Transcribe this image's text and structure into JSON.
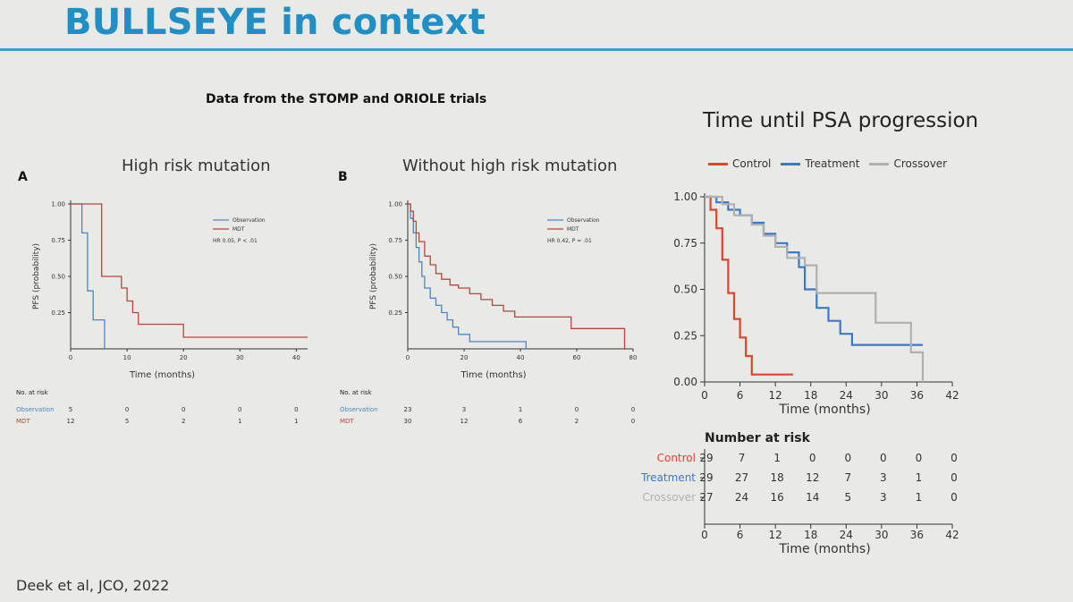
{
  "slide": {
    "title": "BULLSEYE in context",
    "subtitle": "Data from the STOMP and ORIOLE trials",
    "citation": "Deek et al, JCO, 2022"
  },
  "colors": {
    "observation": "#4a86c6",
    "mdt": "#b64540",
    "control": "#d9452f",
    "treatment": "#3a78c9",
    "crossover": "#b0b0b0",
    "accent": "#1f8fc6"
  },
  "chart_data": [
    {
      "type": "line",
      "panel_letter": "A",
      "title": "High risk mutation",
      "xlabel": "Time (months)",
      "ylabel": "PFS (probability)",
      "xlim": [
        0,
        42
      ],
      "ylim": [
        0,
        1
      ],
      "xticks": [
        "0",
        "10",
        "20",
        "30",
        "40"
      ],
      "yticks": [
        "0.25",
        "0.50",
        "0.75",
        "1.00"
      ],
      "legend": {
        "placement": "top-right",
        "entries": [
          "Observation",
          "MDT"
        ],
        "stat": "HR 0.05, P < .01"
      },
      "series": [
        {
          "name": "Observation",
          "color": "observation",
          "points": [
            [
              0,
              1
            ],
            [
              2,
              1
            ],
            [
              2,
              0.8
            ],
            [
              3,
              0.8
            ],
            [
              3,
              0.4
            ],
            [
              4,
              0.4
            ],
            [
              4,
              0.2
            ],
            [
              6,
              0.2
            ],
            [
              6,
              0
            ]
          ]
        },
        {
          "name": "MDT",
          "color": "mdt",
          "points": [
            [
              0,
              1
            ],
            [
              5.5,
              1
            ],
            [
              5.5,
              0.5
            ],
            [
              9,
              0.5
            ],
            [
              9,
              0.42
            ],
            [
              10,
              0.42
            ],
            [
              10,
              0.33
            ],
            [
              11,
              0.33
            ],
            [
              11,
              0.25
            ],
            [
              12,
              0.25
            ],
            [
              12,
              0.17
            ],
            [
              20,
              0.17
            ],
            [
              20,
              0.08
            ],
            [
              42,
              0.08
            ]
          ]
        }
      ],
      "risk_table": {
        "header": "No. at risk",
        "rows": [
          {
            "label": "Observation",
            "color": "observation",
            "values": [
              "5",
              "0",
              "0",
              "0",
              "0"
            ]
          },
          {
            "label": "MDT",
            "color": "mdt",
            "values": [
              "12",
              "5",
              "2",
              "1",
              "1"
            ]
          }
        ]
      }
    },
    {
      "type": "line",
      "panel_letter": "B",
      "title": "Without high risk mutation",
      "xlabel": "Time (months)",
      "ylabel": "PFS (probability)",
      "xlim": [
        0,
        80
      ],
      "ylim": [
        0,
        1
      ],
      "xticks": [
        "0",
        "20",
        "40",
        "60",
        "80"
      ],
      "yticks": [
        "0.25",
        "0.50",
        "0.75",
        "1.00"
      ],
      "legend": {
        "placement": "top-right",
        "entries": [
          "Observation",
          "MDT"
        ],
        "stat": "HR 0.42, P = .01"
      },
      "series": [
        {
          "name": "Observation",
          "color": "observation",
          "points": [
            [
              0,
              1
            ],
            [
              1,
              1
            ],
            [
              1,
              0.9
            ],
            [
              2,
              0.9
            ],
            [
              2,
              0.8
            ],
            [
              3,
              0.8
            ],
            [
              3,
              0.7
            ],
            [
              4,
              0.7
            ],
            [
              4,
              0.6
            ],
            [
              5,
              0.6
            ],
            [
              5,
              0.5
            ],
            [
              6,
              0.5
            ],
            [
              6,
              0.42
            ],
            [
              8,
              0.42
            ],
            [
              8,
              0.35
            ],
            [
              10,
              0.35
            ],
            [
              10,
              0.3
            ],
            [
              12,
              0.3
            ],
            [
              12,
              0.25
            ],
            [
              14,
              0.25
            ],
            [
              14,
              0.2
            ],
            [
              16,
              0.2
            ],
            [
              16,
              0.15
            ],
            [
              18,
              0.15
            ],
            [
              18,
              0.1
            ],
            [
              22,
              0.1
            ],
            [
              22,
              0.05
            ],
            [
              42,
              0.05
            ],
            [
              42,
              0
            ]
          ]
        },
        {
          "name": "MDT",
          "color": "mdt",
          "points": [
            [
              0,
              1
            ],
            [
              1,
              1
            ],
            [
              1,
              0.95
            ],
            [
              2,
              0.95
            ],
            [
              2,
              0.88
            ],
            [
              3,
              0.88
            ],
            [
              3,
              0.8
            ],
            [
              4,
              0.8
            ],
            [
              4,
              0.74
            ],
            [
              6,
              0.74
            ],
            [
              6,
              0.64
            ],
            [
              8,
              0.64
            ],
            [
              8,
              0.58
            ],
            [
              10,
              0.58
            ],
            [
              10,
              0.52
            ],
            [
              12,
              0.52
            ],
            [
              12,
              0.48
            ],
            [
              15,
              0.48
            ],
            [
              15,
              0.44
            ],
            [
              18,
              0.44
            ],
            [
              18,
              0.42
            ],
            [
              22,
              0.42
            ],
            [
              22,
              0.38
            ],
            [
              26,
              0.38
            ],
            [
              26,
              0.34
            ],
            [
              30,
              0.34
            ],
            [
              30,
              0.3
            ],
            [
              34,
              0.3
            ],
            [
              34,
              0.26
            ],
            [
              38,
              0.26
            ],
            [
              38,
              0.22
            ],
            [
              58,
              0.22
            ],
            [
              58,
              0.14
            ],
            [
              77,
              0.14
            ],
            [
              77,
              0
            ]
          ]
        }
      ],
      "risk_table": {
        "header": "No. at risk",
        "rows": [
          {
            "label": "Observation",
            "color": "observation",
            "values": [
              "23",
              "3",
              "1",
              "0",
              "0"
            ]
          },
          {
            "label": "MDT",
            "color": "mdt",
            "values": [
              "30",
              "12",
              "6",
              "2",
              "0"
            ]
          }
        ]
      }
    },
    {
      "type": "line",
      "title": "Time until PSA progression",
      "xlabel": "Time (months)",
      "xlim": [
        0,
        42
      ],
      "ylim": [
        0,
        1
      ],
      "xticks": [
        "0",
        "6",
        "12",
        "18",
        "24",
        "30",
        "36",
        "42"
      ],
      "yticks": [
        "0.00",
        "0.25",
        "0.50",
        "0.75",
        "1.00"
      ],
      "legend": {
        "placement": "top",
        "entries": [
          "Control",
          "Treatment",
          "Crossover"
        ]
      },
      "series": [
        {
          "name": "Control",
          "color": "control",
          "points": [
            [
              0,
              1
            ],
            [
              1,
              1
            ],
            [
              1,
              0.93
            ],
            [
              2,
              0.93
            ],
            [
              2,
              0.83
            ],
            [
              3,
              0.83
            ],
            [
              3,
              0.66
            ],
            [
              4,
              0.66
            ],
            [
              4,
              0.48
            ],
            [
              5,
              0.48
            ],
            [
              5,
              0.34
            ],
            [
              6,
              0.34
            ],
            [
              6,
              0.24
            ],
            [
              7,
              0.24
            ],
            [
              7,
              0.14
            ],
            [
              8,
              0.14
            ],
            [
              8,
              0.04
            ],
            [
              15,
              0.04
            ]
          ]
        },
        {
          "name": "Treatment",
          "color": "treatment",
          "points": [
            [
              0,
              1
            ],
            [
              2,
              1
            ],
            [
              2,
              0.97
            ],
            [
              4,
              0.97
            ],
            [
              4,
              0.93
            ],
            [
              6,
              0.93
            ],
            [
              6,
              0.9
            ],
            [
              8,
              0.9
            ],
            [
              8,
              0.86
            ],
            [
              10,
              0.86
            ],
            [
              10,
              0.8
            ],
            [
              12,
              0.8
            ],
            [
              12,
              0.75
            ],
            [
              14,
              0.75
            ],
            [
              14,
              0.7
            ],
            [
              16,
              0.7
            ],
            [
              16,
              0.62
            ],
            [
              17,
              0.62
            ],
            [
              17,
              0.5
            ],
            [
              19,
              0.5
            ],
            [
              19,
              0.4
            ],
            [
              21,
              0.4
            ],
            [
              21,
              0.33
            ],
            [
              23,
              0.33
            ],
            [
              23,
              0.26
            ],
            [
              25,
              0.26
            ],
            [
              25,
              0.2
            ],
            [
              37,
              0.2
            ]
          ]
        },
        {
          "name": "Crossover",
          "color": "crossover",
          "points": [
            [
              0,
              1
            ],
            [
              3,
              1
            ],
            [
              3,
              0.96
            ],
            [
              5,
              0.96
            ],
            [
              5,
              0.9
            ],
            [
              8,
              0.9
            ],
            [
              8,
              0.85
            ],
            [
              10,
              0.85
            ],
            [
              10,
              0.79
            ],
            [
              12,
              0.79
            ],
            [
              12,
              0.73
            ],
            [
              14,
              0.73
            ],
            [
              14,
              0.67
            ],
            [
              17,
              0.67
            ],
            [
              17,
              0.63
            ],
            [
              19,
              0.63
            ],
            [
              19,
              0.48
            ],
            [
              29,
              0.48
            ],
            [
              29,
              0.32
            ],
            [
              35,
              0.32
            ],
            [
              35,
              0.16
            ],
            [
              37,
              0.16
            ],
            [
              37,
              0
            ]
          ]
        }
      ],
      "risk_table": {
        "header": "Number at risk",
        "rows": [
          {
            "label": "Control",
            "color": "control",
            "values": [
              "29",
              "7",
              "1",
              "0",
              "0",
              "0",
              "0",
              "0"
            ]
          },
          {
            "label": "Treatment",
            "color": "treatment",
            "values": [
              "29",
              "27",
              "18",
              "12",
              "7",
              "3",
              "1",
              "0"
            ]
          },
          {
            "label": "Crossover",
            "color": "crossover",
            "values": [
              "27",
              "24",
              "16",
              "14",
              "5",
              "3",
              "1",
              "0"
            ]
          }
        ]
      }
    }
  ]
}
